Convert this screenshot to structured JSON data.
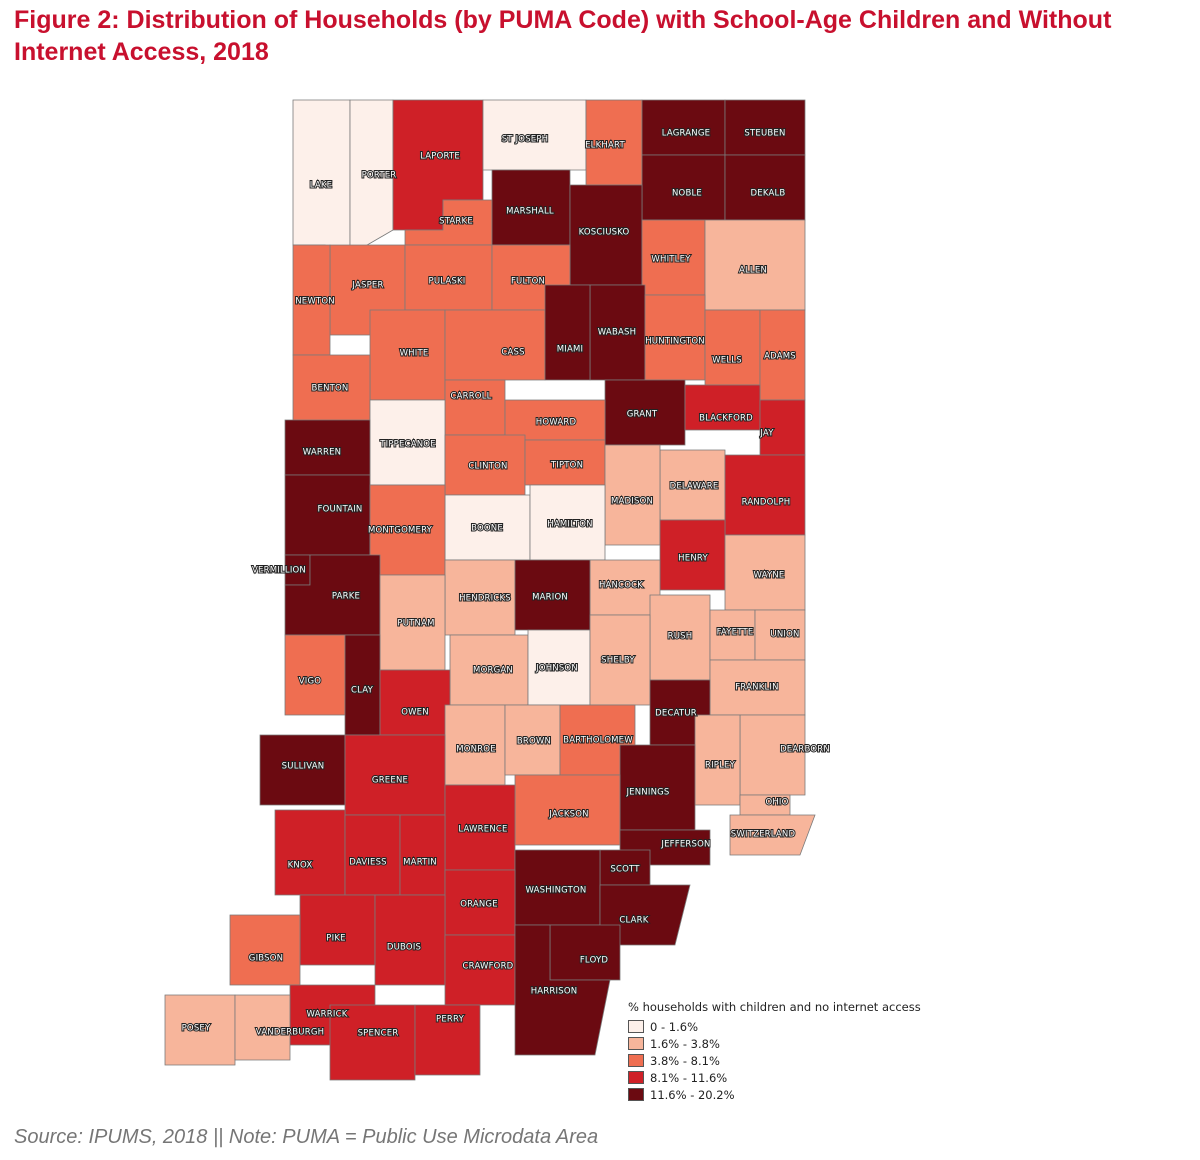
{
  "title": "Figure 2: Distribution of Households (by PUMA Code) with School-Age Children and Without Internet Access, 2018",
  "source_note": "Source: IPUMS, 2018 || Note: PUMA = Public Use Microdata Area",
  "legend": {
    "title": "% households with children and no internet access",
    "classes": [
      {
        "label": "0 - 1.6%",
        "color": "#fdf0ea"
      },
      {
        "label": "1.6% - 3.8%",
        "color": "#f7b59b"
      },
      {
        "label": "3.8% - 8.1%",
        "color": "#ef6e51"
      },
      {
        "label": "8.1% - 11.6%",
        "color": "#cf2027"
      },
      {
        "label": "11.6% - 20.2%",
        "color": "#6b0a11"
      }
    ]
  },
  "counties": [
    {
      "name": "LAKE",
      "class": 0
    },
    {
      "name": "PORTER",
      "class": 0
    },
    {
      "name": "LAPORTE",
      "class": 3
    },
    {
      "name": "ST JOSEPH",
      "class": 0
    },
    {
      "name": "ELKHART",
      "class": 2
    },
    {
      "name": "LAGRANGE",
      "class": 4
    },
    {
      "name": "STEUBEN",
      "class": 4
    },
    {
      "name": "NOBLE",
      "class": 4
    },
    {
      "name": "DEKALB",
      "class": 4
    },
    {
      "name": "STARKE",
      "class": 2
    },
    {
      "name": "MARSHALL",
      "class": 4
    },
    {
      "name": "KOSCIUSKO",
      "class": 4
    },
    {
      "name": "WHITLEY",
      "class": 2
    },
    {
      "name": "ALLEN",
      "class": 1
    },
    {
      "name": "JASPER",
      "class": 2
    },
    {
      "name": "PULASKI",
      "class": 2
    },
    {
      "name": "FULTON",
      "class": 2
    },
    {
      "name": "NEWTON",
      "class": 2
    },
    {
      "name": "WABASH",
      "class": 4
    },
    {
      "name": "HUNTINGTON",
      "class": 2
    },
    {
      "name": "WHITE",
      "class": 2
    },
    {
      "name": "CASS",
      "class": 2
    },
    {
      "name": "MIAMI",
      "class": 4
    },
    {
      "name": "WELLS",
      "class": 2
    },
    {
      "name": "ADAMS",
      "class": 2
    },
    {
      "name": "BENTON",
      "class": 2
    },
    {
      "name": "CARROLL",
      "class": 2
    },
    {
      "name": "GRANT",
      "class": 4
    },
    {
      "name": "BLACKFORD",
      "class": 3
    },
    {
      "name": "JAY",
      "class": 3
    },
    {
      "name": "HOWARD",
      "class": 2
    },
    {
      "name": "TIPPECANOE",
      "class": 0
    },
    {
      "name": "WARREN",
      "class": 4
    },
    {
      "name": "CLINTON",
      "class": 2
    },
    {
      "name": "TIPTON",
      "class": 2
    },
    {
      "name": "DELAWARE",
      "class": 1
    },
    {
      "name": "MADISON",
      "class": 1
    },
    {
      "name": "RANDOLPH",
      "class": 3
    },
    {
      "name": "FOUNTAIN",
      "class": 4
    },
    {
      "name": "BOONE",
      "class": 0
    },
    {
      "name": "HAMILTON",
      "class": 0
    },
    {
      "name": "MONTGOMERY",
      "class": 2
    },
    {
      "name": "HENRY",
      "class": 3
    },
    {
      "name": "VERMILLION",
      "class": 4
    },
    {
      "name": "WAYNE",
      "class": 1
    },
    {
      "name": "HANCOCK",
      "class": 1
    },
    {
      "name": "PARKE",
      "class": 4
    },
    {
      "name": "HENDRICKS",
      "class": 1
    },
    {
      "name": "MARION",
      "class": 4
    },
    {
      "name": "PUTNAM",
      "class": 1
    },
    {
      "name": "RUSH",
      "class": 1
    },
    {
      "name": "FAYETTE",
      "class": 1
    },
    {
      "name": "UNION",
      "class": 1
    },
    {
      "name": "MORGAN",
      "class": 1
    },
    {
      "name": "JOHNSON",
      "class": 0
    },
    {
      "name": "SHELBY",
      "class": 1
    },
    {
      "name": "VIGO",
      "class": 2
    },
    {
      "name": "CLAY",
      "class": 4
    },
    {
      "name": "FRANKLIN",
      "class": 1
    },
    {
      "name": "OWEN",
      "class": 3
    },
    {
      "name": "DECATUR",
      "class": 4
    },
    {
      "name": "MONROE",
      "class": 1
    },
    {
      "name": "BROWN",
      "class": 1
    },
    {
      "name": "BARTHOLOMEW",
      "class": 2
    },
    {
      "name": "DEARBORN",
      "class": 1
    },
    {
      "name": "SULLIVAN",
      "class": 4
    },
    {
      "name": "RIPLEY",
      "class": 1
    },
    {
      "name": "GREENE",
      "class": 3
    },
    {
      "name": "JENNINGS",
      "class": 4
    },
    {
      "name": "OHIO",
      "class": 1
    },
    {
      "name": "JACKSON",
      "class": 2
    },
    {
      "name": "LAWRENCE",
      "class": 3
    },
    {
      "name": "SWITZERLAND",
      "class": 1
    },
    {
      "name": "JEFFERSON",
      "class": 4
    },
    {
      "name": "KNOX",
      "class": 3
    },
    {
      "name": "DAVIESS",
      "class": 3
    },
    {
      "name": "MARTIN",
      "class": 3
    },
    {
      "name": "SCOTT",
      "class": 4
    },
    {
      "name": "WASHINGTON",
      "class": 4
    },
    {
      "name": "ORANGE",
      "class": 3
    },
    {
      "name": "CLARK",
      "class": 4
    },
    {
      "name": "PIKE",
      "class": 3
    },
    {
      "name": "GIBSON",
      "class": 2
    },
    {
      "name": "DUBOIS",
      "class": 3
    },
    {
      "name": "FLOYD",
      "class": 4
    },
    {
      "name": "CRAWFORD",
      "class": 3
    },
    {
      "name": "HARRISON",
      "class": 4
    },
    {
      "name": "WARRICK",
      "class": 3
    },
    {
      "name": "POSEY",
      "class": 1
    },
    {
      "name": "VANDERBURGH",
      "class": 1
    },
    {
      "name": "SPENCER",
      "class": 3
    },
    {
      "name": "PERRY",
      "class": 3
    }
  ]
}
